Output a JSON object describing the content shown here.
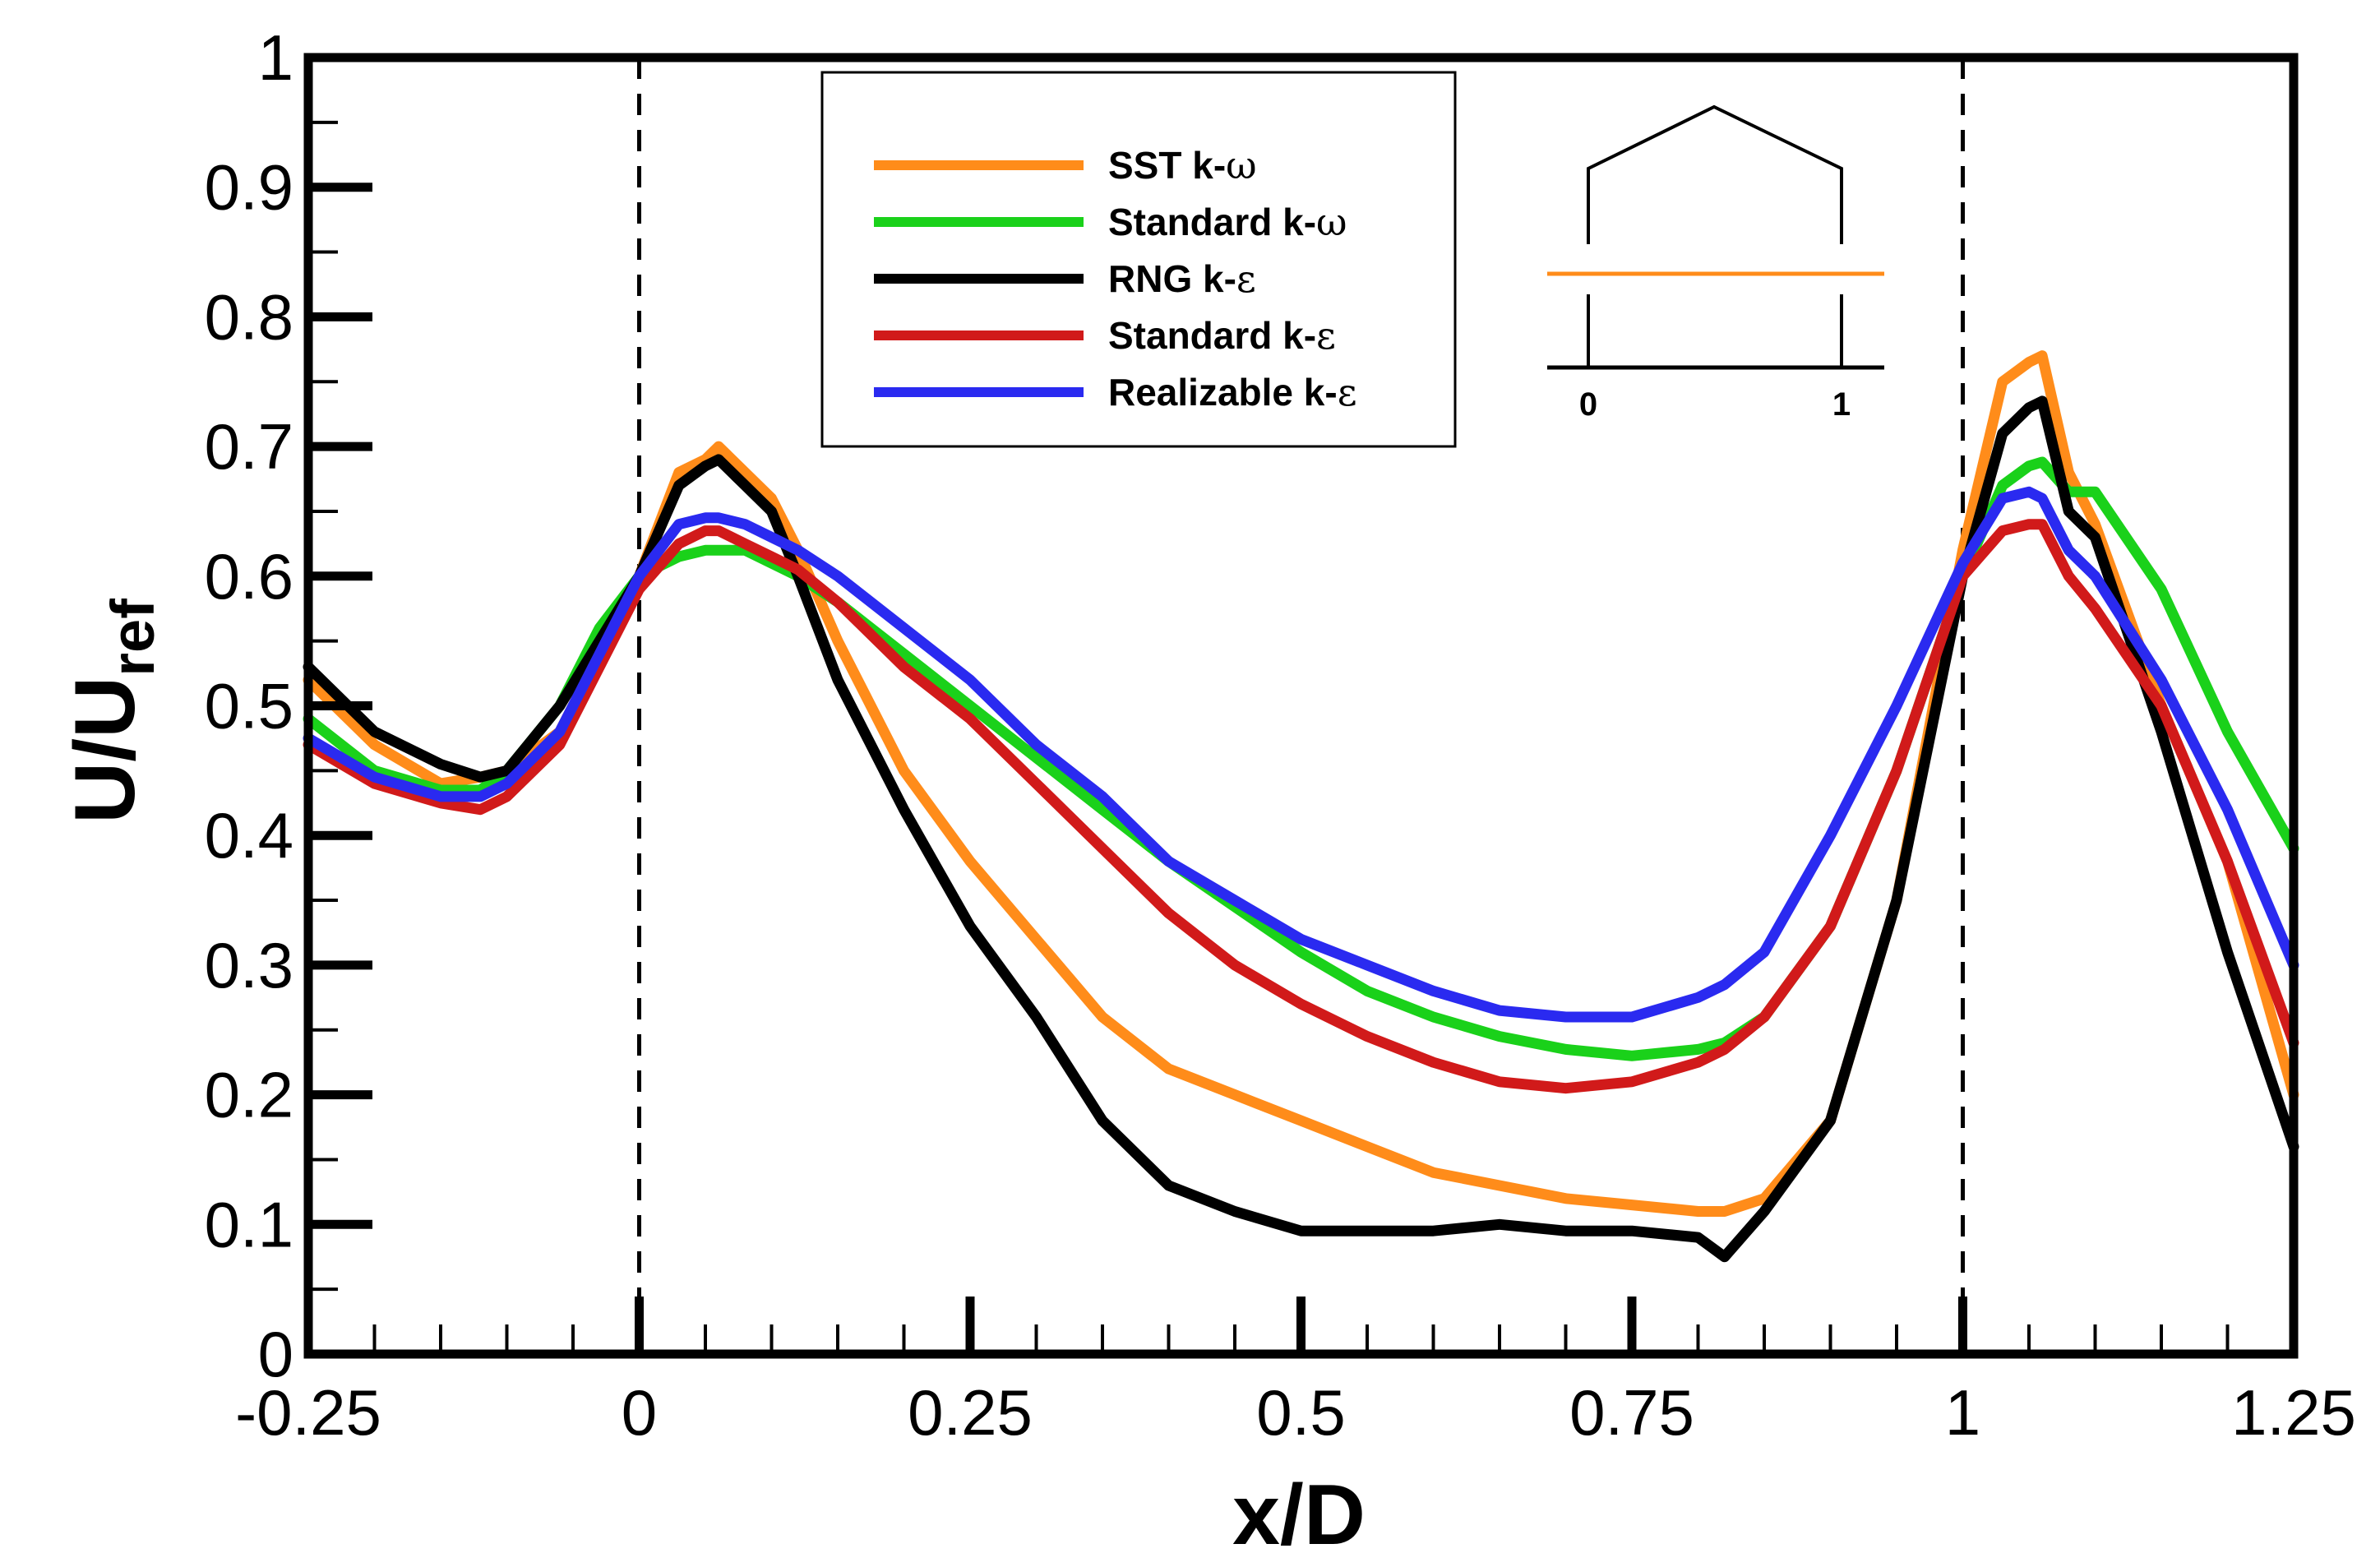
{
  "chart_data": {
    "type": "line",
    "xlabel": "x/D",
    "ylabel_main": "U/U",
    "ylabel_sub": "ref",
    "xlim": [
      -0.25,
      1.25
    ],
    "ylim": [
      0,
      1
    ],
    "xticks": [
      -0.25,
      0,
      0.25,
      0.5,
      0.75,
      1,
      1.25
    ],
    "xtick_labels": [
      "-0.25",
      "0",
      "0.25",
      "0.5",
      "0.75",
      "1",
      "1.25"
    ],
    "yticks": [
      0,
      0.1,
      0.2,
      0.3,
      0.4,
      0.5,
      0.6,
      0.7,
      0.8,
      0.9,
      1
    ],
    "ytick_labels": [
      "0",
      "0.1",
      "0.2",
      "0.3",
      "0.4",
      "0.5",
      "0.6",
      "0.7",
      "0.8",
      "0.9",
      "1"
    ],
    "reference_lines_x": [
      0,
      1
    ],
    "grid": false,
    "legend_position": "top-center",
    "series": [
      {
        "name": "SST k-ω",
        "label_main": "SST k-",
        "label_symbol": "ω",
        "color": "#ff8c1a",
        "x": [
          -0.25,
          -0.2,
          -0.15,
          -0.12,
          -0.1,
          -0.06,
          -0.03,
          0,
          0.03,
          0.05,
          0.06,
          0.08,
          0.1,
          0.12,
          0.15,
          0.2,
          0.25,
          0.3,
          0.35,
          0.4,
          0.45,
          0.5,
          0.55,
          0.6,
          0.65,
          0.7,
          0.75,
          0.8,
          0.82,
          0.85,
          0.9,
          0.95,
          1,
          1.03,
          1.05,
          1.06,
          1.08,
          1.1,
          1.15,
          1.2,
          1.25
        ],
        "y": [
          0.52,
          0.47,
          0.44,
          0.445,
          0.45,
          0.48,
          0.54,
          0.6,
          0.68,
          0.69,
          0.7,
          0.68,
          0.66,
          0.62,
          0.55,
          0.45,
          0.38,
          0.32,
          0.26,
          0.22,
          0.2,
          0.18,
          0.16,
          0.14,
          0.13,
          0.12,
          0.115,
          0.11,
          0.11,
          0.12,
          0.18,
          0.35,
          0.62,
          0.75,
          0.765,
          0.77,
          0.68,
          0.64,
          0.5,
          0.38,
          0.2
        ]
      },
      {
        "name": "Standard k-ω",
        "label_main": "Standard k-",
        "label_symbol": "ω",
        "color": "#1ad11a",
        "x": [
          -0.25,
          -0.2,
          -0.15,
          -0.12,
          -0.1,
          -0.06,
          -0.03,
          0,
          0.03,
          0.05,
          0.06,
          0.08,
          0.1,
          0.12,
          0.15,
          0.2,
          0.25,
          0.3,
          0.35,
          0.4,
          0.45,
          0.5,
          0.55,
          0.6,
          0.65,
          0.7,
          0.75,
          0.8,
          0.82,
          0.85,
          0.9,
          0.95,
          1,
          1.03,
          1.05,
          1.06,
          1.08,
          1.1,
          1.15,
          1.2,
          1.25
        ],
        "y": [
          0.49,
          0.45,
          0.435,
          0.435,
          0.45,
          0.5,
          0.56,
          0.6,
          0.615,
          0.62,
          0.62,
          0.62,
          0.61,
          0.6,
          0.58,
          0.54,
          0.5,
          0.46,
          0.42,
          0.38,
          0.345,
          0.31,
          0.28,
          0.26,
          0.245,
          0.235,
          0.23,
          0.235,
          0.24,
          0.26,
          0.33,
          0.45,
          0.6,
          0.67,
          0.685,
          0.688,
          0.665,
          0.665,
          0.59,
          0.48,
          0.39
        ]
      },
      {
        "name": "RNG k-ε",
        "label_main": "RNG k-",
        "label_symbol": "ε",
        "color": "#000000",
        "x": [
          -0.25,
          -0.2,
          -0.15,
          -0.12,
          -0.1,
          -0.06,
          -0.03,
          0,
          0.03,
          0.05,
          0.06,
          0.08,
          0.1,
          0.12,
          0.15,
          0.2,
          0.25,
          0.3,
          0.35,
          0.4,
          0.45,
          0.5,
          0.55,
          0.6,
          0.65,
          0.7,
          0.75,
          0.8,
          0.82,
          0.85,
          0.9,
          0.95,
          1,
          1.03,
          1.05,
          1.06,
          1.08,
          1.1,
          1.15,
          1.2,
          1.25
        ],
        "y": [
          0.53,
          0.48,
          0.455,
          0.445,
          0.45,
          0.5,
          0.55,
          0.6,
          0.67,
          0.685,
          0.69,
          0.67,
          0.65,
          0.6,
          0.52,
          0.42,
          0.33,
          0.26,
          0.18,
          0.13,
          0.11,
          0.095,
          0.095,
          0.095,
          0.1,
          0.095,
          0.095,
          0.09,
          0.075,
          0.11,
          0.18,
          0.35,
          0.6,
          0.71,
          0.73,
          0.735,
          0.65,
          0.63,
          0.48,
          0.31,
          0.16
        ]
      },
      {
        "name": "Standard k-ε",
        "label_main": "Standard  k-",
        "label_symbol": "ε",
        "color": "#d11a1a",
        "x": [
          -0.25,
          -0.2,
          -0.15,
          -0.12,
          -0.1,
          -0.06,
          -0.03,
          0,
          0.03,
          0.05,
          0.06,
          0.08,
          0.1,
          0.12,
          0.15,
          0.2,
          0.25,
          0.3,
          0.35,
          0.4,
          0.45,
          0.5,
          0.55,
          0.6,
          0.65,
          0.7,
          0.75,
          0.8,
          0.82,
          0.85,
          0.9,
          0.95,
          1,
          1.03,
          1.05,
          1.06,
          1.08,
          1.1,
          1.15,
          1.2,
          1.25
        ],
        "y": [
          0.47,
          0.44,
          0.425,
          0.42,
          0.43,
          0.47,
          0.53,
          0.59,
          0.625,
          0.635,
          0.635,
          0.625,
          0.615,
          0.605,
          0.58,
          0.53,
          0.49,
          0.44,
          0.39,
          0.34,
          0.3,
          0.27,
          0.245,
          0.225,
          0.21,
          0.205,
          0.21,
          0.225,
          0.235,
          0.26,
          0.33,
          0.45,
          0.6,
          0.635,
          0.64,
          0.64,
          0.6,
          0.575,
          0.5,
          0.38,
          0.24
        ]
      },
      {
        "name": "Realizable k-ε",
        "label_main": "Realizable  k-",
        "label_symbol": "ε",
        "color": "#2a2af0",
        "x": [
          -0.25,
          -0.2,
          -0.15,
          -0.12,
          -0.1,
          -0.06,
          -0.03,
          0,
          0.03,
          0.05,
          0.06,
          0.08,
          0.1,
          0.12,
          0.15,
          0.2,
          0.25,
          0.3,
          0.35,
          0.4,
          0.45,
          0.5,
          0.55,
          0.6,
          0.65,
          0.7,
          0.75,
          0.8,
          0.82,
          0.85,
          0.9,
          0.95,
          1,
          1.03,
          1.05,
          1.06,
          1.08,
          1.1,
          1.15,
          1.2,
          1.25
        ],
        "y": [
          0.475,
          0.445,
          0.43,
          0.43,
          0.44,
          0.48,
          0.54,
          0.6,
          0.64,
          0.645,
          0.645,
          0.64,
          0.63,
          0.62,
          0.6,
          0.56,
          0.52,
          0.47,
          0.43,
          0.38,
          0.35,
          0.32,
          0.3,
          0.28,
          0.265,
          0.26,
          0.26,
          0.275,
          0.285,
          0.31,
          0.4,
          0.5,
          0.61,
          0.66,
          0.665,
          0.66,
          0.62,
          0.6,
          0.52,
          0.42,
          0.3
        ]
      }
    ],
    "inset": {
      "tick_labels": [
        "0",
        "1"
      ],
      "line_color": "#ff8c1a"
    }
  }
}
